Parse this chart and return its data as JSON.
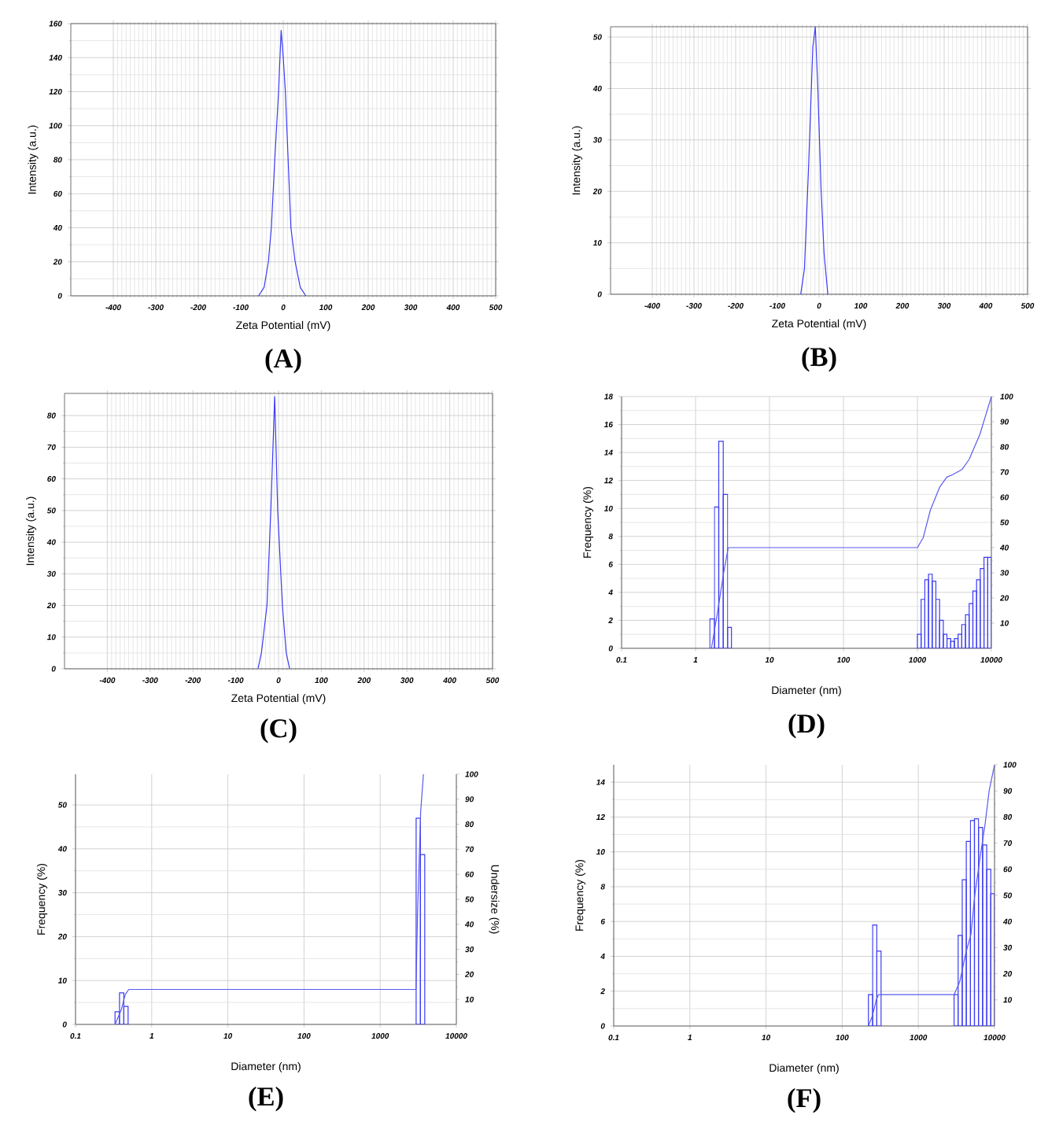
{
  "chart_data": [
    {
      "type": "line",
      "title": "(A)",
      "xlabel": "Zeta Potential (mV)",
      "ylabel": "Intensity (a.u.)",
      "xlim": [
        -500,
        500
      ],
      "xticks": [
        -400,
        -300,
        -200,
        -100,
        0,
        100,
        200,
        300,
        400,
        500
      ],
      "ylim": [
        0,
        160
      ],
      "yticks": [
        0,
        20,
        40,
        60,
        80,
        100,
        120,
        140,
        160
      ],
      "grid": true,
      "series": [
        {
          "color": "#3b3bf5",
          "x": [
            -58,
            -45,
            -35,
            -28,
            -20,
            -11,
            -5,
            0,
            5,
            18,
            28,
            40,
            53
          ],
          "values": [
            0,
            5,
            20,
            40,
            80,
            120,
            156,
            140,
            120,
            40,
            20,
            5,
            0
          ]
        }
      ]
    },
    {
      "type": "line",
      "title": "(B)",
      "xlabel": "Zeta Potential (mV)",
      "ylabel": "Intensity (a.u.)",
      "xlim": [
        -500,
        500
      ],
      "xticks": [
        -400,
        -300,
        -200,
        -100,
        0,
        100,
        200,
        300,
        400,
        500
      ],
      "ylim": [
        0,
        52
      ],
      "yticks": [
        0,
        10,
        20,
        30,
        40,
        50
      ],
      "grid": true,
      "series": [
        {
          "color": "#3b3bf5",
          "x": [
            -44,
            -35,
            -25,
            -15,
            -9,
            -3,
            5,
            12,
            21
          ],
          "values": [
            0,
            5,
            25,
            48,
            52,
            40,
            20,
            8,
            0
          ]
        }
      ]
    },
    {
      "type": "line",
      "title": "(C)",
      "xlabel": "Zeta Potential (mV)",
      "ylabel": "Intensity (a.u.)",
      "xlim": [
        -500,
        500
      ],
      "xticks": [
        -400,
        -300,
        -200,
        -100,
        0,
        100,
        200,
        300,
        400,
        500
      ],
      "ylim": [
        0,
        87
      ],
      "yticks": [
        0,
        10,
        20,
        30,
        40,
        50,
        60,
        70,
        80
      ],
      "grid": true,
      "series": [
        {
          "color": "#3b3bf5",
          "x": [
            -48,
            -40,
            -27,
            -18,
            -9,
            -2,
            9,
            18,
            26
          ],
          "values": [
            0,
            5,
            20,
            50,
            86,
            50,
            20,
            5,
            0
          ]
        }
      ]
    },
    {
      "type": "histogram",
      "title": "(D)",
      "xlabel": "Diameter (nm)",
      "ylabel": "Frequency (%)",
      "log": "x",
      "xlim": [
        0.1,
        10000
      ],
      "xticks": [
        0.1,
        1,
        10,
        100,
        1000,
        10000
      ],
      "ylim": [
        0,
        18
      ],
      "yticks": [
        0,
        2,
        4,
        6,
        8,
        10,
        12,
        14,
        16,
        18
      ],
      "y2lim": [
        0,
        100
      ],
      "y2ticks": [
        10,
        20,
        30,
        40,
        50,
        60,
        70,
        80,
        90,
        100
      ],
      "grid": true,
      "series": [
        {
          "type": "histogram",
          "color": "#3b3bf5",
          "bins": [
            1.56,
            1.8,
            2.06,
            2.37,
            2.72,
            3.06
          ],
          "values": [
            2.1,
            10.1,
            14.8,
            11.0,
            1.5
          ]
        },
        {
          "type": "histogram",
          "color": "#3b3bf5",
          "bins": [
            1000,
            1122,
            1259,
            1413,
            1585,
            1778,
            1995,
            2239,
            2512,
            2818,
            3162,
            3548,
            3981,
            4467,
            5012,
            5623,
            6310,
            7079,
            7943,
            8913,
            10000
          ],
          "values": [
            1.0,
            3.5,
            4.9,
            5.3,
            4.8,
            3.5,
            2.0,
            1.0,
            0.7,
            0.5,
            0.7,
            1.0,
            1.7,
            2.4,
            3.2,
            4.1,
            4.9,
            5.7,
            6.5,
            6.5
          ]
        },
        {
          "type": "line",
          "axis": "y2",
          "color": "#5a5af0",
          "x": [
            1.64,
            2,
            2.4,
            2.77,
            1000,
            1200,
            1500,
            2000,
            2500,
            3000,
            4000,
            5000,
            7000,
            10000
          ],
          "values": [
            0,
            15,
            30,
            40,
            40,
            44,
            55,
            64,
            68,
            69,
            71,
            75,
            85,
            100
          ]
        }
      ]
    },
    {
      "type": "histogram",
      "title": "(E)",
      "xlabel": "Diameter (nm)",
      "ylabel": "Frequency (%)",
      "y2label": "Undersize (%)",
      "log": "x",
      "xlim": [
        0.1,
        10000
      ],
      "xticks": [
        0.1,
        1,
        10,
        100,
        1000,
        10000
      ],
      "ylim": [
        0,
        57
      ],
      "yticks": [
        0,
        10,
        20,
        30,
        40,
        50
      ],
      "y2lim": [
        0,
        100
      ],
      "y2ticks": [
        10,
        20,
        30,
        40,
        50,
        60,
        70,
        80,
        90,
        100
      ],
      "grid": true,
      "series": [
        {
          "type": "histogram",
          "color": "#3b3bf5",
          "bins": [
            0.33,
            0.378,
            0.43,
            0.49
          ],
          "values": [
            2.9,
            7.2,
            4.1
          ]
        },
        {
          "type": "histogram",
          "color": "#3b3bf5",
          "bins": [
            2965,
            3375,
            3845
          ],
          "values": [
            47,
            38.7
          ]
        },
        {
          "type": "line",
          "axis": "y2",
          "color": "#5a5af0",
          "x": [
            0.33,
            0.4,
            0.45,
            0.5,
            2950,
            3100,
            3400,
            3700
          ],
          "values": [
            0,
            6,
            12,
            14,
            14,
            45,
            85,
            100
          ]
        }
      ]
    },
    {
      "type": "histogram",
      "title": "(F)",
      "xlabel": "Diameter (nm)",
      "ylabel": "Frequency (%)",
      "log": "x",
      "xlim": [
        0.1,
        10000
      ],
      "xticks": [
        0.1,
        1,
        10,
        100,
        1000,
        10000
      ],
      "ylim": [
        0,
        15
      ],
      "yticks": [
        0,
        2,
        4,
        6,
        8,
        10,
        12,
        14
      ],
      "y2lim": [
        0,
        100
      ],
      "y2ticks": [
        10,
        20,
        30,
        40,
        50,
        60,
        70,
        80,
        90,
        100
      ],
      "grid": true,
      "series": [
        {
          "type": "histogram",
          "color": "#3b3bf5",
          "bins": [
            221,
            251,
            285,
            324
          ],
          "values": [
            1.8,
            5.8,
            4.3
          ]
        },
        {
          "type": "histogram",
          "color": "#3b3bf5",
          "bins": [
            2944,
            3330,
            3767,
            4260,
            4820,
            5450,
            6170,
            6980,
            7900,
            8930,
            10000
          ],
          "values": [
            1.8,
            5.2,
            8.4,
            10.6,
            11.8,
            11.9,
            11.4,
            10.4,
            9.0,
            7.6
          ]
        },
        {
          "type": "line",
          "axis": "y2",
          "color": "#5a5af0",
          "x": [
            221,
            250,
            280,
            300,
            2944,
            3500,
            4200,
            4900,
            5500,
            6500,
            7500,
            8500,
            10000
          ],
          "values": [
            0,
            4,
            10,
            12,
            12,
            17,
            28,
            35,
            50,
            65,
            77,
            90,
            100
          ]
        }
      ]
    }
  ]
}
